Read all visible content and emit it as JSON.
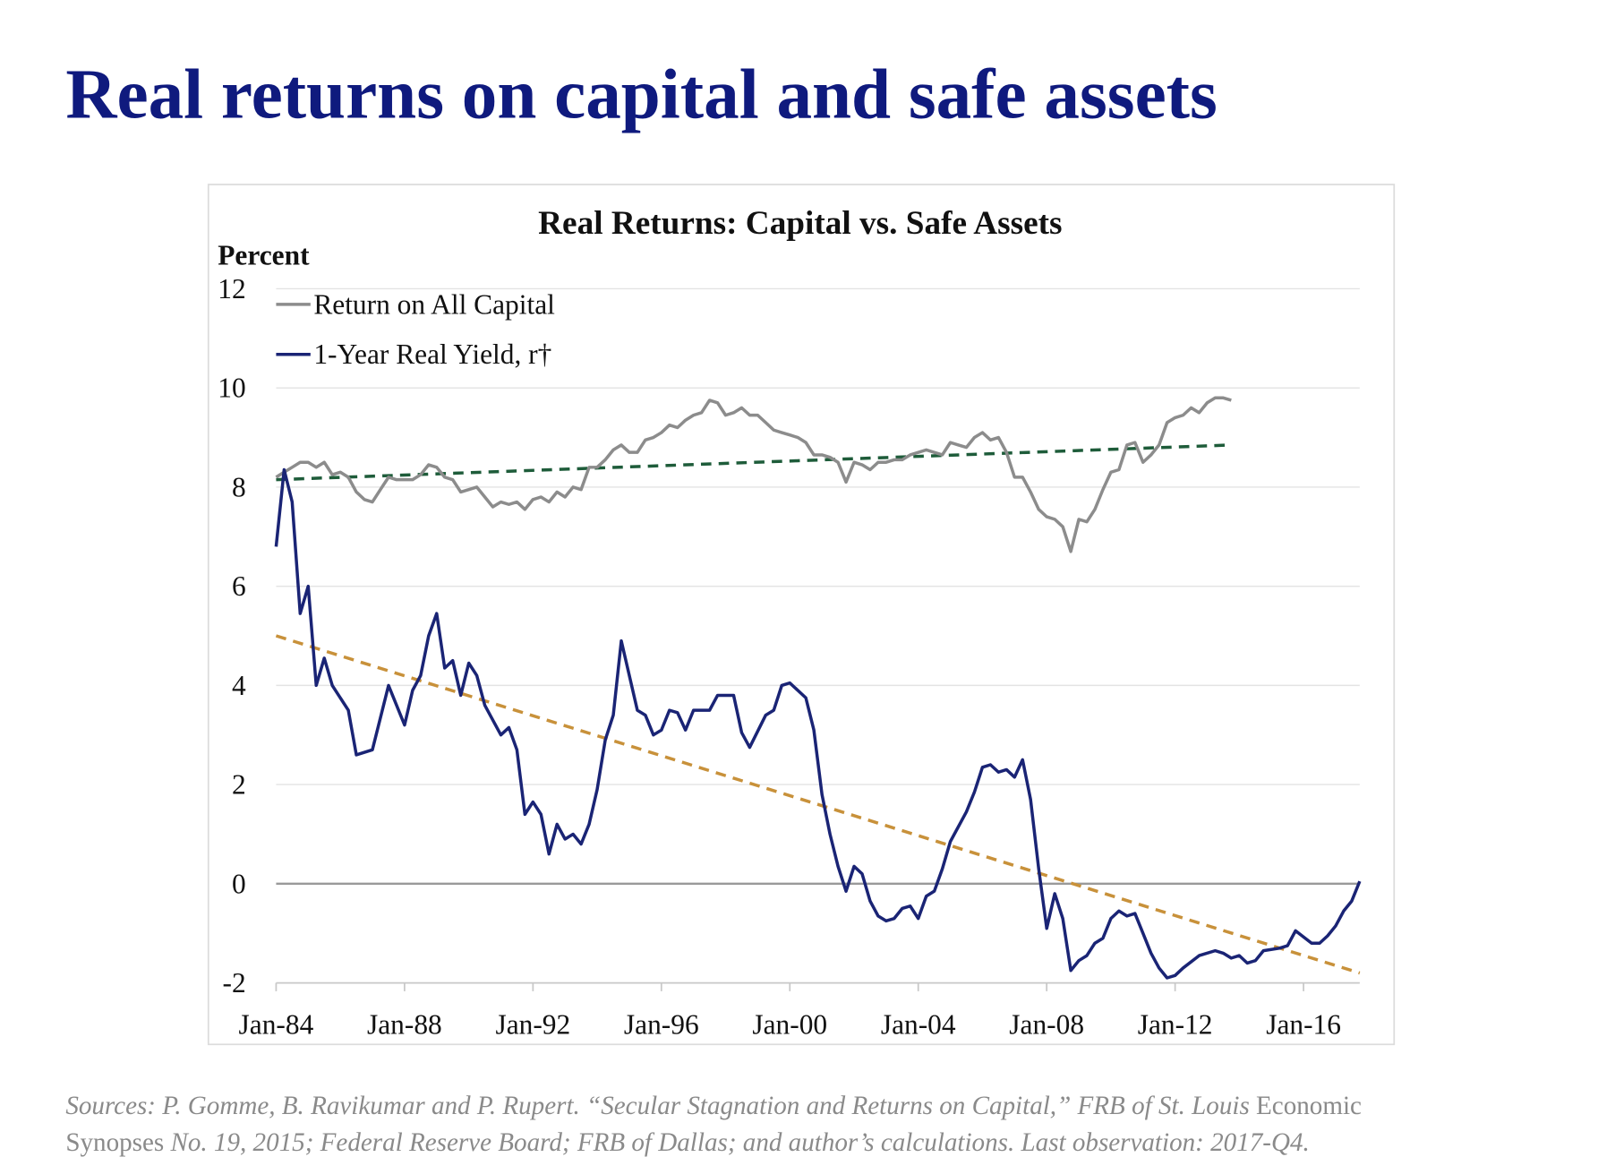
{
  "header": {
    "title": "Real returns on capital and safe assets"
  },
  "chart_data": {
    "type": "line",
    "title": "Real Returns: Capital vs. Safe Assets",
    "ylabel": "Percent",
    "xlim": [
      1984,
      2017.75
    ],
    "ylim": [
      -2,
      12
    ],
    "xticks": [
      {
        "value": 1984,
        "label": "Jan-84"
      },
      {
        "value": 1988,
        "label": "Jan-88"
      },
      {
        "value": 1992,
        "label": "Jan-92"
      },
      {
        "value": 1996,
        "label": "Jan-96"
      },
      {
        "value": 2000,
        "label": "Jan-00"
      },
      {
        "value": 2004,
        "label": "Jan-04"
      },
      {
        "value": 2008,
        "label": "Jan-08"
      },
      {
        "value": 2012,
        "label": "Jan-12"
      },
      {
        "value": 2016,
        "label": "Jan-16"
      }
    ],
    "yticks": [
      -2,
      0,
      2,
      4,
      6,
      8,
      10,
      12
    ],
    "grid": true,
    "zero_line": true,
    "legend": "upper-left",
    "series": [
      {
        "name": "Return on All Capital",
        "color": "#8c8c8c",
        "x": [
          1984,
          1984.25,
          1984.5,
          1984.75,
          1985,
          1985.25,
          1985.5,
          1985.75,
          1986,
          1986.25,
          1986.5,
          1986.75,
          1987,
          1987.25,
          1987.5,
          1987.75,
          1988,
          1988.25,
          1988.5,
          1988.75,
          1989,
          1989.25,
          1989.5,
          1989.75,
          1990,
          1990.25,
          1990.5,
          1990.75,
          1991,
          1991.25,
          1991.5,
          1991.75,
          1992,
          1992.25,
          1992.5,
          1992.75,
          1993,
          1993.25,
          1993.5,
          1993.75,
          1994,
          1994.25,
          1994.5,
          1994.75,
          1995,
          1995.25,
          1995.5,
          1995.75,
          1996,
          1996.25,
          1996.5,
          1996.75,
          1997,
          1997.25,
          1997.5,
          1997.75,
          1998,
          1998.25,
          1998.5,
          1998.75,
          1999,
          1999.25,
          1999.5,
          1999.75,
          2000,
          2000.25,
          2000.5,
          2000.75,
          2001,
          2001.25,
          2001.5,
          2001.75,
          2002,
          2002.25,
          2002.5,
          2002.75,
          2003,
          2003.25,
          2003.5,
          2003.75,
          2004,
          2004.25,
          2004.5,
          2004.75,
          2005,
          2005.25,
          2005.5,
          2005.75,
          2006,
          2006.25,
          2006.5,
          2006.75,
          2007,
          2007.25,
          2007.5,
          2007.75,
          2008,
          2008.25,
          2008.5,
          2008.75,
          2009,
          2009.25,
          2009.5,
          2009.75,
          2010,
          2010.25,
          2010.5,
          2010.75,
          2011,
          2011.25,
          2011.5,
          2011.75,
          2012,
          2012.25,
          2012.5,
          2012.75,
          2013,
          2013.25,
          2013.5,
          2013.75
        ],
        "values": [
          8.2,
          8.3,
          8.4,
          8.5,
          8.5,
          8.4,
          8.5,
          8.25,
          8.3,
          8.2,
          7.9,
          7.75,
          7.7,
          7.95,
          8.2,
          8.15,
          8.15,
          8.15,
          8.25,
          8.45,
          8.4,
          8.2,
          8.15,
          7.9,
          7.95,
          8.0,
          7.8,
          7.6,
          7.7,
          7.65,
          7.7,
          7.55,
          7.75,
          7.8,
          7.7,
          7.9,
          7.8,
          8.0,
          7.95,
          8.4,
          8.4,
          8.55,
          8.75,
          8.85,
          8.7,
          8.7,
          8.95,
          9.0,
          9.1,
          9.25,
          9.2,
          9.35,
          9.45,
          9.5,
          9.75,
          9.7,
          9.45,
          9.5,
          9.6,
          9.45,
          9.45,
          9.3,
          9.15,
          9.1,
          9.05,
          9.0,
          8.9,
          8.65,
          8.65,
          8.6,
          8.5,
          8.1,
          8.5,
          8.45,
          8.35,
          8.5,
          8.5,
          8.55,
          8.55,
          8.65,
          8.7,
          8.75,
          8.7,
          8.65,
          8.9,
          8.85,
          8.8,
          9.0,
          9.1,
          8.95,
          9.0,
          8.7,
          8.2,
          8.2,
          7.9,
          7.55,
          7.4,
          7.35,
          7.2,
          6.7,
          7.35,
          7.3,
          7.55,
          7.95,
          8.3,
          8.35,
          8.85,
          8.9,
          8.5,
          8.65,
          8.85,
          9.3,
          9.4,
          9.45,
          9.6,
          9.5,
          9.7,
          9.8,
          9.8,
          9.75
        ]
      },
      {
        "name": "1-Year Real Yield, r†",
        "color": "#1a2475",
        "x": [
          1984,
          1984.25,
          1984.5,
          1984.75,
          1985,
          1985.25,
          1985.5,
          1985.75,
          1986.25,
          1986.5,
          1987,
          1987.5,
          1988,
          1988.25,
          1988.5,
          1988.75,
          1989,
          1989.25,
          1989.5,
          1989.75,
          1990,
          1990.25,
          1990.5,
          1991,
          1991.25,
          1991.5,
          1991.75,
          1992,
          1992.25,
          1992.5,
          1992.75,
          1993,
          1993.25,
          1993.5,
          1993.75,
          1994,
          1994.25,
          1994.5,
          1994.75,
          1995.25,
          1995.5,
          1995.75,
          1996,
          1996.25,
          1996.5,
          1996.75,
          1997,
          1997.5,
          1997.75,
          1998.25,
          1998.5,
          1998.75,
          1999.25,
          1999.5,
          1999.75,
          2000,
          2000.5,
          2000.75,
          2001,
          2001.25,
          2001.5,
          2001.75,
          2002,
          2002.25,
          2002.5,
          2002.75,
          2003,
          2003.25,
          2003.5,
          2003.75,
          2004,
          2004.25,
          2004.5,
          2004.75,
          2005,
          2005.5,
          2005.75,
          2006,
          2006.25,
          2006.5,
          2006.75,
          2007,
          2007.25,
          2007.5,
          2007.75,
          2008,
          2008.25,
          2008.5,
          2008.75,
          2009,
          2009.25,
          2009.5,
          2009.75,
          2010,
          2010.25,
          2010.5,
          2010.75,
          2011,
          2011.25,
          2011.5,
          2011.75,
          2012,
          2012.25,
          2012.75,
          2013.25,
          2013.5,
          2013.75,
          2014,
          2014.25,
          2014.5,
          2014.75,
          2015.25,
          2015.5,
          2015.75,
          2016.25,
          2016.5,
          2016.75,
          2017,
          2017.25,
          2017.5,
          2017.75
        ],
        "values": [
          6.8,
          8.35,
          7.7,
          5.45,
          6.0,
          4.0,
          4.55,
          4.0,
          3.5,
          2.6,
          2.7,
          4.0,
          3.2,
          3.9,
          4.2,
          5.0,
          5.45,
          4.35,
          4.5,
          3.8,
          4.45,
          4.2,
          3.6,
          3.0,
          3.15,
          2.7,
          1.4,
          1.65,
          1.4,
          0.6,
          1.2,
          0.9,
          1.0,
          0.8,
          1.2,
          1.9,
          2.9,
          3.4,
          4.9,
          3.5,
          3.4,
          3.0,
          3.1,
          3.5,
          3.45,
          3.1,
          3.5,
          3.5,
          3.8,
          3.8,
          3.05,
          2.75,
          3.4,
          3.5,
          4.0,
          4.05,
          3.75,
          3.1,
          1.8,
          1.0,
          0.35,
          -0.15,
          0.35,
          0.2,
          -0.35,
          -0.65,
          -0.75,
          -0.7,
          -0.5,
          -0.45,
          -0.7,
          -0.25,
          -0.15,
          0.3,
          0.85,
          1.45,
          1.85,
          2.35,
          2.4,
          2.25,
          2.3,
          2.15,
          2.5,
          1.7,
          0.3,
          -0.9,
          -0.2,
          -0.7,
          -1.75,
          -1.55,
          -1.45,
          -1.2,
          -1.1,
          -0.7,
          -0.55,
          -0.65,
          -0.6,
          -1.0,
          -1.4,
          -1.7,
          -1.9,
          -1.85,
          -1.7,
          -1.45,
          -1.35,
          -1.4,
          -1.5,
          -1.45,
          -1.6,
          -1.55,
          -1.35,
          -1.3,
          -1.25,
          -0.95,
          -1.2,
          -1.2,
          -1.05,
          -0.85,
          -0.55,
          -0.35,
          0.05
        ]
      }
    ],
    "trendlines": [
      {
        "color": "#1e5c3a",
        "x": [
          1984,
          2013.75
        ],
        "values": [
          8.15,
          8.85
        ]
      },
      {
        "color": "#c8913a",
        "x": [
          1984,
          2017.75
        ],
        "values": [
          5.0,
          -1.8
        ]
      }
    ]
  },
  "source": {
    "lines": [
      [
        {
          "text": "Sources: P. Gomme, B. Ravikumar and P. Rupert. “Secular Stagnation and Returns on Capital,” FRB of St. Louis ",
          "style": "italic"
        },
        {
          "text": "Economic",
          "style": "normal"
        }
      ],
      [
        {
          "text": "Synopses",
          "style": "normal"
        },
        {
          "text": " No. 19, 2015; Federal Reserve Board; FRB of Dallas; and author’s calculations. Last observation: 2017-Q4.",
          "style": "italic"
        }
      ]
    ]
  }
}
